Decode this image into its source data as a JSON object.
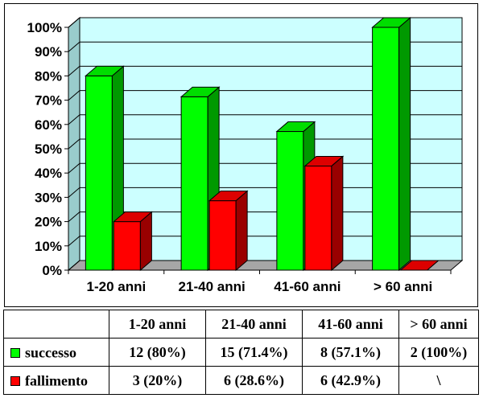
{
  "chart_data": {
    "type": "bar",
    "categories": [
      "1-20 anni",
      "21-40 anni",
      "41-60 anni",
      "> 60 anni"
    ],
    "series": [
      {
        "name": "successo",
        "values": [
          80,
          71.4,
          57.1,
          100
        ],
        "color": "#00ff00",
        "side_color": "#009900",
        "top_color": "#00dd00"
      },
      {
        "name": "fallimento",
        "values": [
          20,
          28.6,
          42.9,
          0
        ],
        "color": "#ff0000",
        "side_color": "#990000",
        "top_color": "#dd0000"
      }
    ],
    "ylim": [
      0,
      100
    ],
    "yticks": [
      "0%",
      "10%",
      "20%",
      "30%",
      "40%",
      "50%",
      "60%",
      "70%",
      "80%",
      "90%",
      "100%"
    ],
    "plot_background": "#ccffff",
    "grid": true,
    "legend": "table-below"
  },
  "table": {
    "headers": [
      "1-20 anni",
      "21-40 anni",
      "41-60 anni",
      "> 60 anni"
    ],
    "rows": [
      {
        "label": "successo",
        "color": "#00ff00",
        "cells": [
          "12 (80%)",
          "15 (71.4%)",
          "8 (57.1%)",
          "2 (100%)"
        ]
      },
      {
        "label": "fallimento",
        "color": "#ff0000",
        "cells": [
          "3 (20%)",
          "6 (28.6%)",
          "6 (42.9%)",
          "\\"
        ]
      }
    ]
  }
}
